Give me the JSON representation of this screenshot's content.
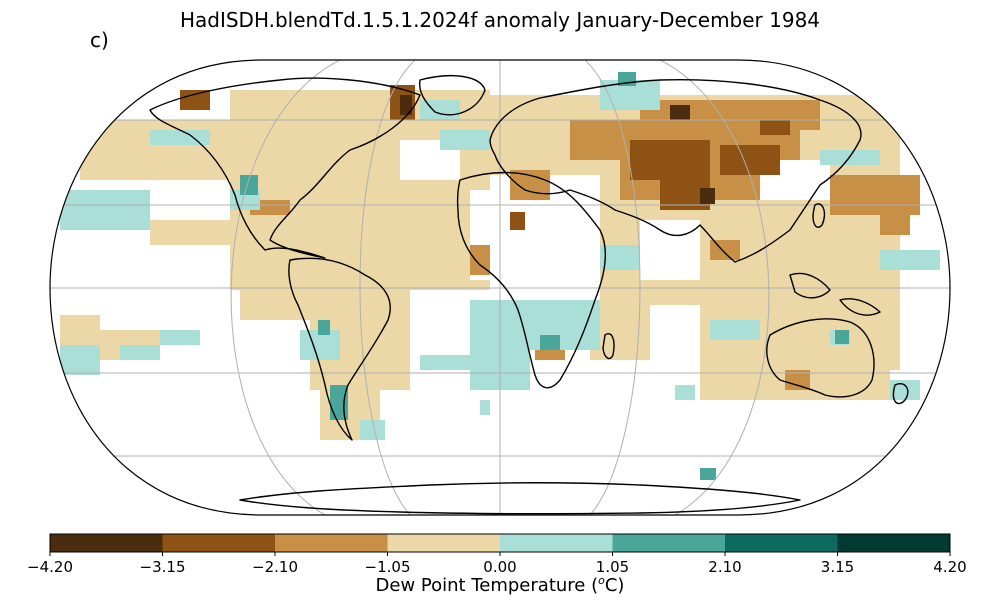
{
  "title": "HadISDH.blendTd.1.5.1.2024f anomaly January-December 1984",
  "panel_label": "c)",
  "colorbar": {
    "label_prefix": "Dew Point Temperature (",
    "label_sup": "o",
    "label_suffix": "C)",
    "ticks": [
      "−4.20",
      "−3.15",
      "−2.10",
      "−1.05",
      "0.00",
      "1.05",
      "2.10",
      "3.15",
      "4.20"
    ],
    "colors": [
      "#4b2c0e",
      "#8e5314",
      "#c89046",
      "#ecd7a6",
      "#aadfd8",
      "#4aa699",
      "#0a6b5e",
      "#003a30"
    ]
  },
  "map": {
    "projection": "Robinson",
    "land_outline_color": "#000000",
    "gridline_color": "#b0b0b0",
    "no_data_color": "#ffffff"
  }
}
